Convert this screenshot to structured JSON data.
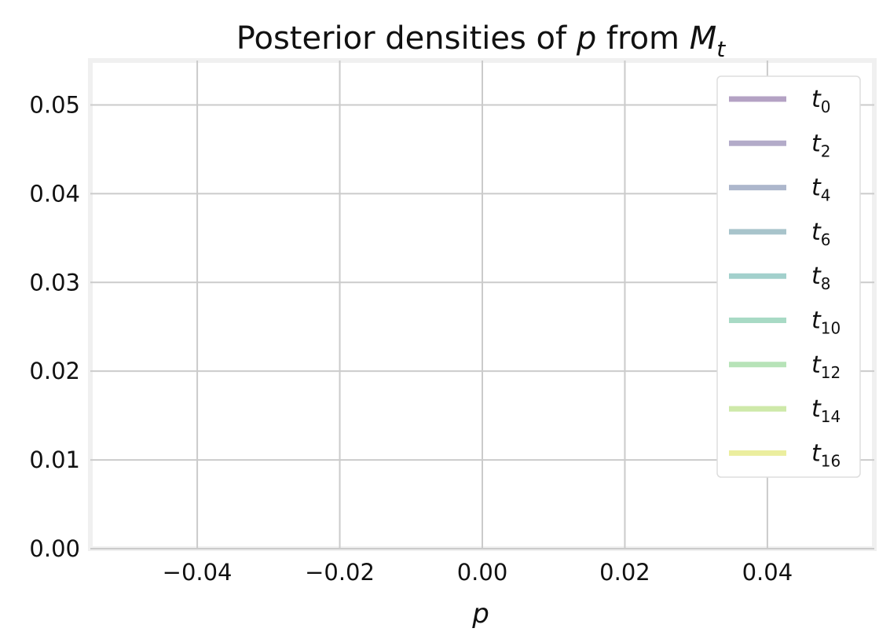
{
  "chart_data": {
    "type": "line",
    "title": {
      "prefix": "Posterior densities of ",
      "p": "p",
      "middle": " from ",
      "M": "M",
      "sub": "t"
    },
    "xlabel": "p",
    "ylabel": "",
    "xlim": [
      -0.055,
      0.055
    ],
    "ylim": [
      0.0,
      0.055
    ],
    "xticks": [
      -0.04,
      -0.02,
      0.0,
      0.02,
      0.04
    ],
    "xtick_labels": [
      "−0.04",
      "−0.02",
      "0.00",
      "0.02",
      "0.04"
    ],
    "yticks": [
      0.0,
      0.01,
      0.02,
      0.03,
      0.04,
      0.05
    ],
    "ytick_labels": [
      "0.00",
      "0.01",
      "0.02",
      "0.03",
      "0.04",
      "0.05"
    ],
    "grid": true,
    "legend_position": "top-right",
    "series": [
      {
        "name": "t",
        "sub": "0",
        "color": "#b4a2c4",
        "x": [],
        "y": []
      },
      {
        "name": "t",
        "sub": "2",
        "color": "#b3abc9",
        "x": [],
        "y": []
      },
      {
        "name": "t",
        "sub": "4",
        "color": "#adb7cc",
        "x": [],
        "y": []
      },
      {
        "name": "t",
        "sub": "6",
        "color": "#a8c4cb",
        "x": [],
        "y": []
      },
      {
        "name": "t",
        "sub": "8",
        "color": "#a2d0cc",
        "x": [],
        "y": []
      },
      {
        "name": "t",
        "sub": "10",
        "color": "#a8dac5",
        "x": [],
        "y": []
      },
      {
        "name": "t",
        "sub": "12",
        "color": "#b7e3b8",
        "x": [],
        "y": []
      },
      {
        "name": "t",
        "sub": "14",
        "color": "#cee9a9",
        "x": [],
        "y": []
      },
      {
        "name": "t",
        "sub": "16",
        "color": "#ebee9e",
        "x": [],
        "y": []
      }
    ]
  }
}
